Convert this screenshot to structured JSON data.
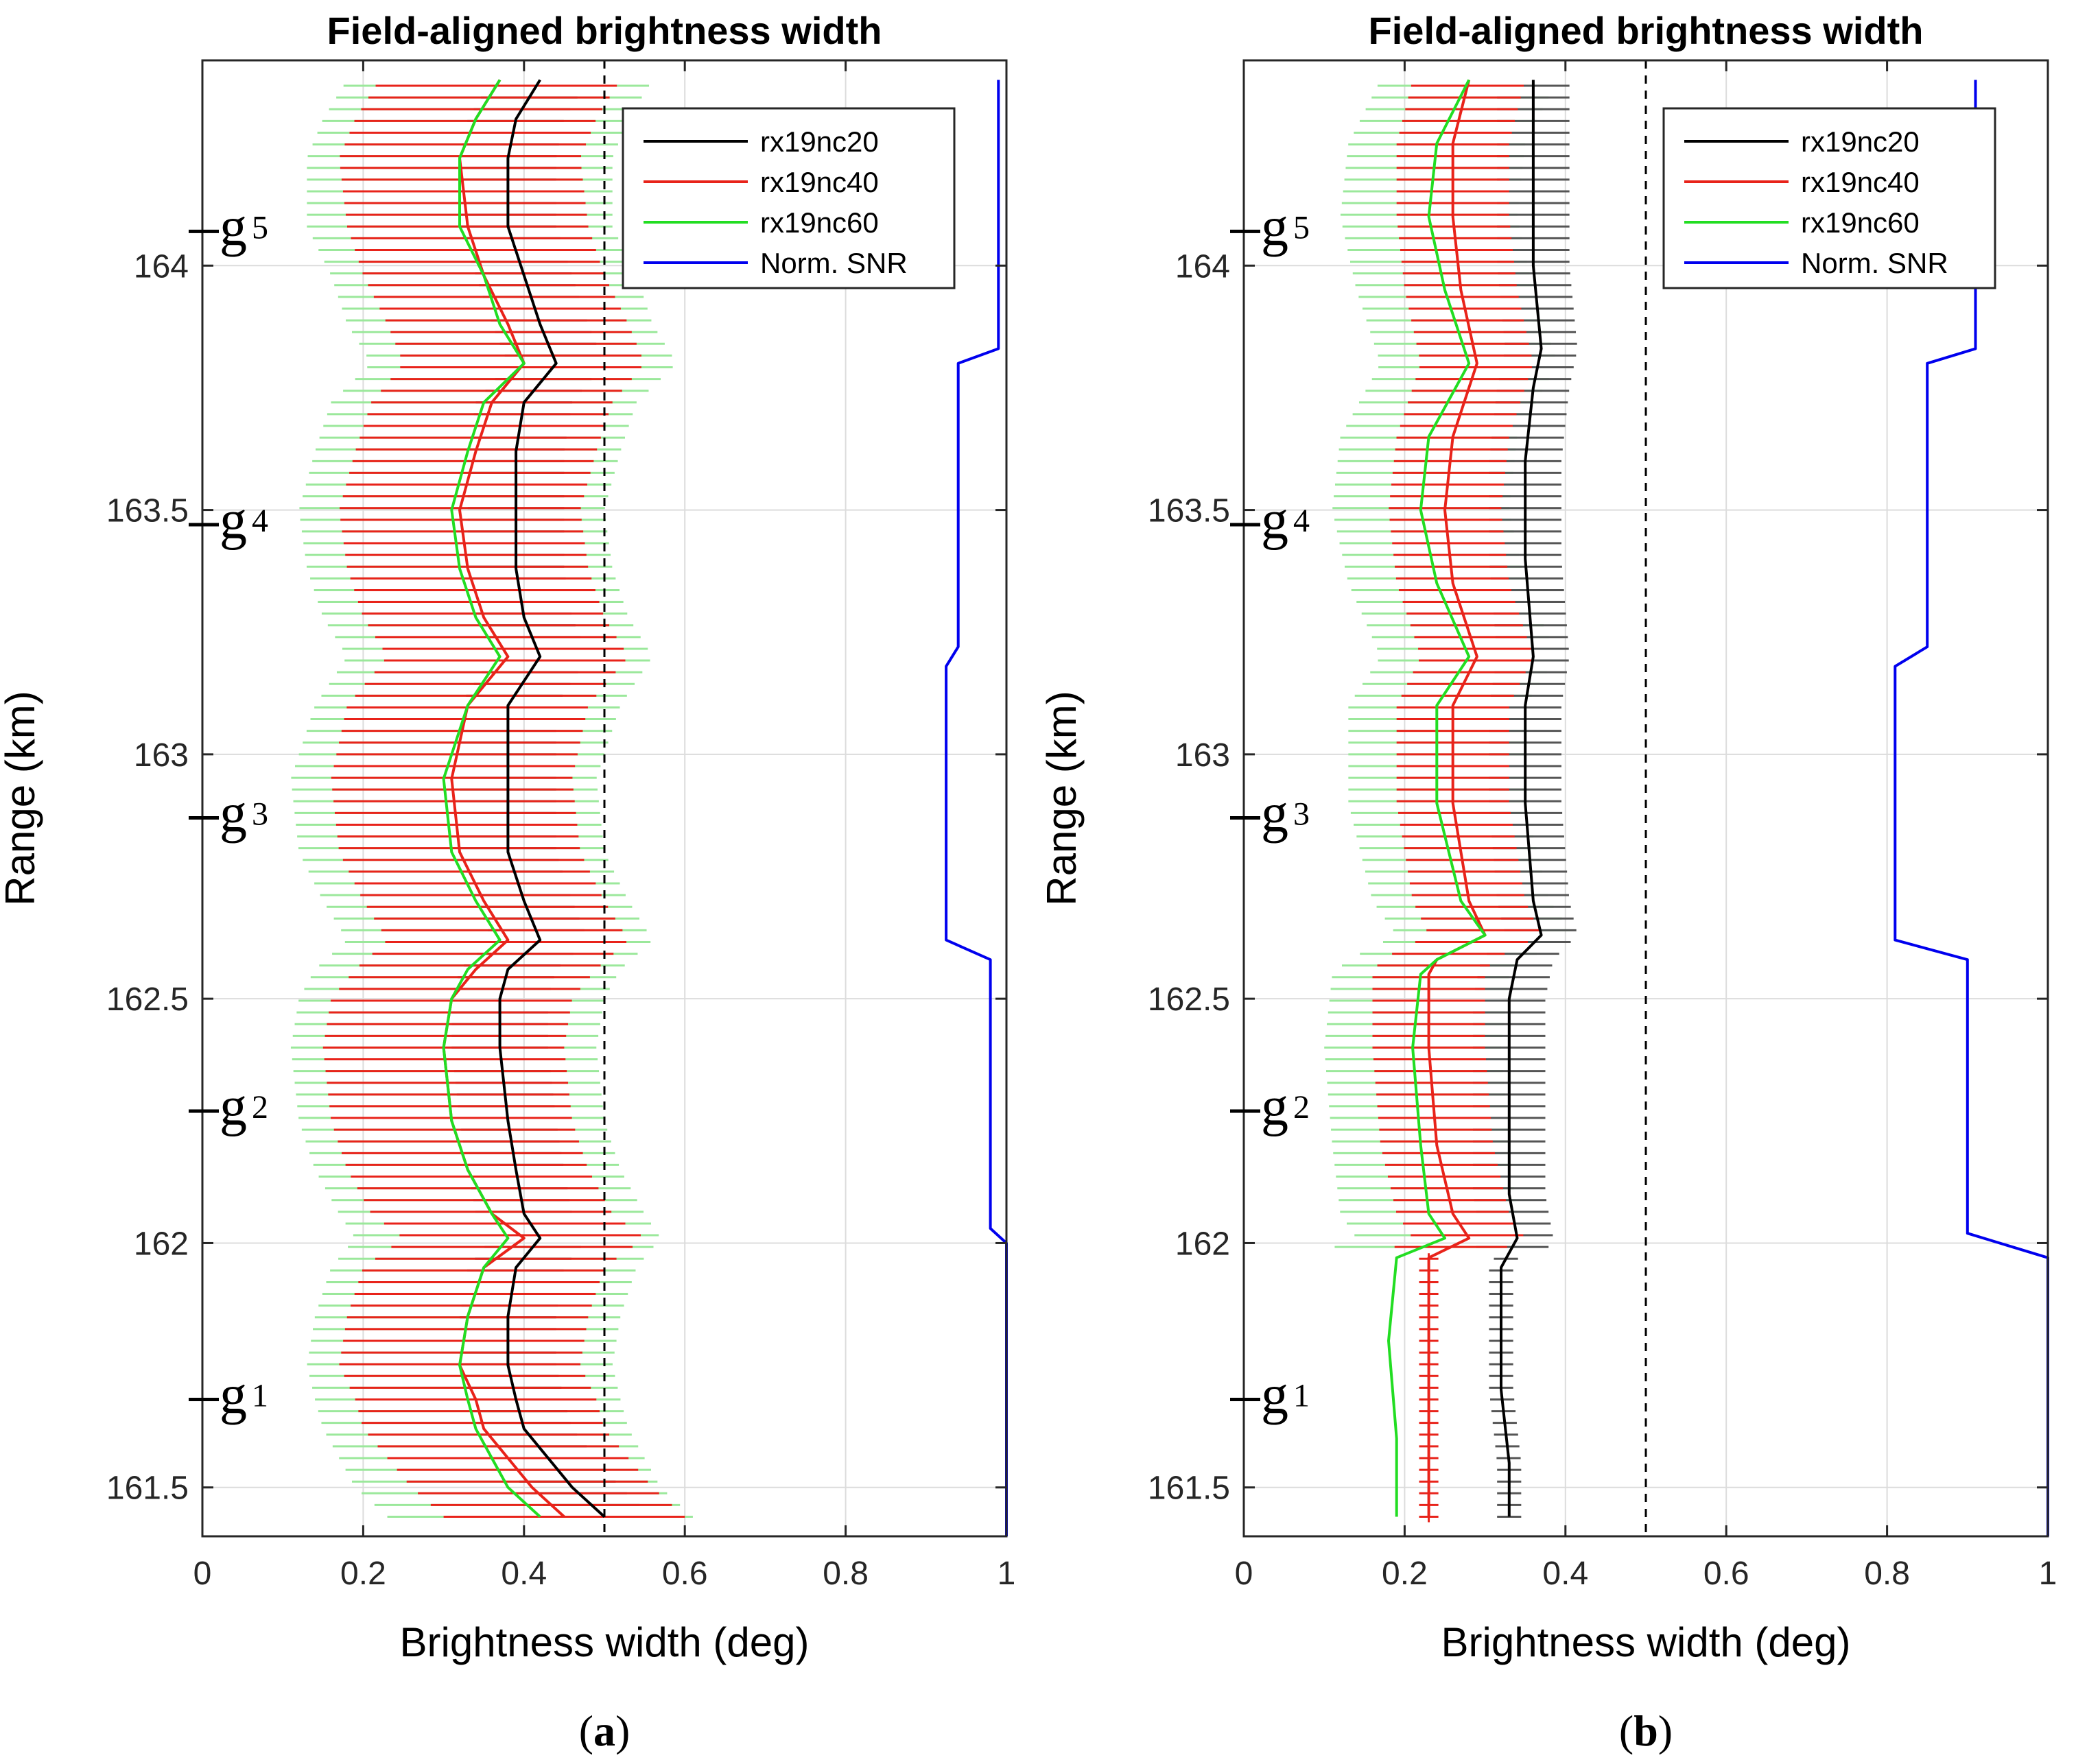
{
  "chart_data": [
    {
      "type": "line",
      "panel_caption": {
        "open": "(",
        "letter": "a",
        "close": ")"
      },
      "title": "Field-aligned brightness width",
      "xlabel": "Brightness width (deg)",
      "ylabel": "Range (km)",
      "xlim": [
        0,
        1
      ],
      "ylim": [
        161.4,
        164.42
      ],
      "xticks": [
        "0",
        "0.2",
        "0.4",
        "0.6",
        "0.8",
        "1"
      ],
      "yticks": [
        "161.5",
        "162",
        "162.5",
        "163",
        "163.5",
        "164"
      ],
      "grid": true,
      "reference_line_x": 0.5,
      "gate_labels": [
        {
          "letter": "g",
          "sub": "1",
          "y": 161.68
        },
        {
          "letter": "g",
          "sub": "2",
          "y": 162.27
        },
        {
          "letter": "g",
          "sub": "3",
          "y": 162.87
        },
        {
          "letter": "g",
          "sub": "4",
          "y": 163.47
        },
        {
          "letter": "g",
          "sub": "5",
          "y": 164.07
        }
      ],
      "legend_entries": [
        "rx19nc20",
        "rx19nc40",
        "rx19nc60",
        "Norm. SNR"
      ],
      "series": [
        {
          "name": "rx19nc20",
          "color": "#000000",
          "errbar_color": "#555555",
          "points": [
            [
              161.44,
              0.5
            ],
            [
              161.5,
              0.46
            ],
            [
              161.56,
              0.43
            ],
            [
              161.62,
              0.4
            ],
            [
              161.68,
              0.39
            ],
            [
              161.75,
              0.38
            ],
            [
              161.85,
              0.38
            ],
            [
              161.95,
              0.39
            ],
            [
              162.01,
              0.42
            ],
            [
              162.06,
              0.4
            ],
            [
              162.15,
              0.39
            ],
            [
              162.25,
              0.38
            ],
            [
              162.4,
              0.37
            ],
            [
              162.5,
              0.37
            ],
            [
              162.56,
              0.38
            ],
            [
              162.62,
              0.42
            ],
            [
              162.7,
              0.4
            ],
            [
              162.8,
              0.38
            ],
            [
              162.95,
              0.38
            ],
            [
              163.1,
              0.38
            ],
            [
              163.2,
              0.42
            ],
            [
              163.28,
              0.4
            ],
            [
              163.38,
              0.39
            ],
            [
              163.5,
              0.39
            ],
            [
              163.62,
              0.39
            ],
            [
              163.72,
              0.4
            ],
            [
              163.8,
              0.44
            ],
            [
              163.88,
              0.42
            ],
            [
              163.98,
              0.4
            ],
            [
              164.08,
              0.38
            ],
            [
              164.22,
              0.38
            ],
            [
              164.3,
              0.39
            ],
            [
              164.38,
              0.42
            ]
          ]
        },
        {
          "name": "rx19nc40",
          "color": "#e8231a",
          "errbar_color": "#e8231a",
          "points": [
            [
              161.44,
              0.45
            ],
            [
              161.5,
              0.41
            ],
            [
              161.56,
              0.38
            ],
            [
              161.62,
              0.35
            ],
            [
              161.68,
              0.34
            ],
            [
              161.75,
              0.32
            ],
            [
              161.85,
              0.33
            ],
            [
              161.95,
              0.35
            ],
            [
              162.01,
              0.4
            ],
            [
              162.06,
              0.36
            ],
            [
              162.15,
              0.33
            ],
            [
              162.25,
              0.31
            ],
            [
              162.4,
              0.3
            ],
            [
              162.5,
              0.31
            ],
            [
              162.56,
              0.34
            ],
            [
              162.62,
              0.38
            ],
            [
              162.7,
              0.35
            ],
            [
              162.8,
              0.32
            ],
            [
              162.95,
              0.31
            ],
            [
              163.1,
              0.33
            ],
            [
              163.2,
              0.38
            ],
            [
              163.28,
              0.35
            ],
            [
              163.38,
              0.33
            ],
            [
              163.5,
              0.32
            ],
            [
              163.62,
              0.34
            ],
            [
              163.72,
              0.36
            ],
            [
              163.8,
              0.4
            ],
            [
              163.88,
              0.38
            ],
            [
              163.98,
              0.35
            ],
            [
              164.08,
              0.33
            ],
            [
              164.22,
              0.32
            ],
            [
              164.3,
              0.34
            ],
            [
              164.38,
              0.37
            ]
          ]
        },
        {
          "name": "rx19nc60",
          "color": "#22dd22",
          "errbar_color": "#9be89b",
          "points": [
            [
              161.44,
              0.42
            ],
            [
              161.5,
              0.38
            ],
            [
              161.56,
              0.36
            ],
            [
              161.62,
              0.34
            ],
            [
              161.68,
              0.33
            ],
            [
              161.75,
              0.32
            ],
            [
              161.85,
              0.33
            ],
            [
              161.95,
              0.35
            ],
            [
              162.01,
              0.38
            ],
            [
              162.06,
              0.36
            ],
            [
              162.15,
              0.33
            ],
            [
              162.25,
              0.31
            ],
            [
              162.4,
              0.3
            ],
            [
              162.5,
              0.31
            ],
            [
              162.56,
              0.33
            ],
            [
              162.62,
              0.37
            ],
            [
              162.7,
              0.34
            ],
            [
              162.8,
              0.31
            ],
            [
              162.95,
              0.3
            ],
            [
              163.1,
              0.33
            ],
            [
              163.2,
              0.37
            ],
            [
              163.28,
              0.34
            ],
            [
              163.38,
              0.32
            ],
            [
              163.5,
              0.31
            ],
            [
              163.62,
              0.33
            ],
            [
              163.72,
              0.35
            ],
            [
              163.8,
              0.4
            ],
            [
              163.88,
              0.37
            ],
            [
              163.98,
              0.35
            ],
            [
              164.08,
              0.32
            ],
            [
              164.22,
              0.32
            ],
            [
              164.3,
              0.34
            ],
            [
              164.38,
              0.37
            ]
          ]
        },
        {
          "name": "Norm. SNR",
          "color": "#0000ee",
          "points": [
            [
              161.4,
              1.0
            ],
            [
              162.0,
              1.0
            ],
            [
              162.03,
              0.98
            ],
            [
              162.58,
              0.98
            ],
            [
              162.62,
              0.925
            ],
            [
              163.18,
              0.925
            ],
            [
              163.22,
              0.94
            ],
            [
              163.8,
              0.94
            ],
            [
              163.83,
              0.99
            ],
            [
              164.38,
              0.99
            ]
          ]
        }
      ]
    },
    {
      "type": "line",
      "panel_caption": {
        "open": "(",
        "letter": "b",
        "close": ")"
      },
      "title": "Field-aligned brightness width",
      "xlabel": "Brightness width (deg)",
      "ylabel": "Range (km)",
      "xlim": [
        0,
        1
      ],
      "ylim": [
        161.4,
        164.42
      ],
      "xticks": [
        "0",
        "0.2",
        "0.4",
        "0.6",
        "0.8",
        "1"
      ],
      "yticks": [
        "161.5",
        "162",
        "162.5",
        "163",
        "163.5",
        "164"
      ],
      "grid": true,
      "reference_line_x": 0.5,
      "gate_labels": [
        {
          "letter": "g",
          "sub": "1",
          "y": 161.68
        },
        {
          "letter": "g",
          "sub": "2",
          "y": 162.27
        },
        {
          "letter": "g",
          "sub": "3",
          "y": 162.87
        },
        {
          "letter": "g",
          "sub": "4",
          "y": 163.47
        },
        {
          "letter": "g",
          "sub": "5",
          "y": 164.07
        }
      ],
      "legend_entries": [
        "rx19nc20",
        "rx19nc40",
        "rx19nc60",
        "Norm. SNR"
      ],
      "series": [
        {
          "name": "rx19nc20",
          "color": "#000000",
          "errbar_color": "#555555",
          "points": [
            [
              161.44,
              0.33
            ],
            [
              161.55,
              0.33
            ],
            [
              161.7,
              0.32
            ],
            [
              161.85,
              0.32
            ],
            [
              161.95,
              0.32
            ],
            [
              162.01,
              0.34
            ],
            [
              162.1,
              0.33
            ],
            [
              162.3,
              0.33
            ],
            [
              162.5,
              0.33
            ],
            [
              162.58,
              0.34
            ],
            [
              162.63,
              0.37
            ],
            [
              162.7,
              0.36
            ],
            [
              162.9,
              0.35
            ],
            [
              163.1,
              0.35
            ],
            [
              163.2,
              0.36
            ],
            [
              163.4,
              0.35
            ],
            [
              163.6,
              0.35
            ],
            [
              163.75,
              0.36
            ],
            [
              163.83,
              0.37
            ],
            [
              164.0,
              0.36
            ],
            [
              164.2,
              0.36
            ],
            [
              164.38,
              0.36
            ]
          ]
        },
        {
          "name": "rx19nc40",
          "color": "#e8231a",
          "errbar_color": "#e8231a",
          "points": [
            [
              161.44,
              0.23
            ],
            [
              161.6,
              0.23
            ],
            [
              161.8,
              0.23
            ],
            [
              161.97,
              0.23
            ],
            [
              162.01,
              0.28
            ],
            [
              162.06,
              0.26
            ],
            [
              162.2,
              0.24
            ],
            [
              162.4,
              0.23
            ],
            [
              162.55,
              0.23
            ],
            [
              162.58,
              0.24
            ],
            [
              162.63,
              0.3
            ],
            [
              162.7,
              0.28
            ],
            [
              162.9,
              0.26
            ],
            [
              163.1,
              0.26
            ],
            [
              163.2,
              0.29
            ],
            [
              163.35,
              0.26
            ],
            [
              163.5,
              0.25
            ],
            [
              163.65,
              0.26
            ],
            [
              163.8,
              0.29
            ],
            [
              163.95,
              0.27
            ],
            [
              164.1,
              0.26
            ],
            [
              164.25,
              0.26
            ],
            [
              164.38,
              0.28
            ]
          ]
        },
        {
          "name": "rx19nc60",
          "color": "#22dd22",
          "errbar_color": "#9be89b",
          "points": [
            [
              161.44,
              0.19
            ],
            [
              161.6,
              0.19
            ],
            [
              161.8,
              0.18
            ],
            [
              161.97,
              0.19
            ],
            [
              162.01,
              0.25
            ],
            [
              162.06,
              0.23
            ],
            [
              162.2,
              0.22
            ],
            [
              162.4,
              0.21
            ],
            [
              162.55,
              0.22
            ],
            [
              162.58,
              0.24
            ],
            [
              162.63,
              0.3
            ],
            [
              162.7,
              0.27
            ],
            [
              162.9,
              0.24
            ],
            [
              163.1,
              0.24
            ],
            [
              163.2,
              0.28
            ],
            [
              163.35,
              0.24
            ],
            [
              163.5,
              0.22
            ],
            [
              163.65,
              0.23
            ],
            [
              163.8,
              0.28
            ],
            [
              163.95,
              0.25
            ],
            [
              164.1,
              0.23
            ],
            [
              164.25,
              0.24
            ],
            [
              164.38,
              0.28
            ]
          ]
        },
        {
          "name": "Norm. SNR",
          "color": "#0000ee",
          "points": [
            [
              161.4,
              1.0
            ],
            [
              161.97,
              1.0
            ],
            [
              162.02,
              0.9
            ],
            [
              162.58,
              0.9
            ],
            [
              162.62,
              0.81
            ],
            [
              163.18,
              0.81
            ],
            [
              163.22,
              0.85
            ],
            [
              163.8,
              0.85
            ],
            [
              163.83,
              0.91
            ],
            [
              164.38,
              0.91
            ]
          ]
        }
      ]
    }
  ]
}
